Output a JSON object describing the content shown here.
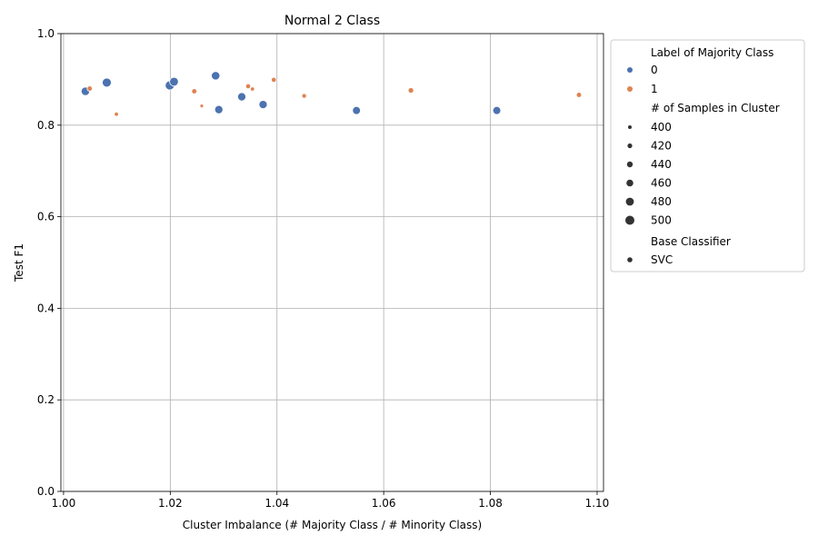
{
  "chart_data": {
    "type": "scatter",
    "title": "Normal 2 Class",
    "xlabel": "Cluster Imbalance (# Majority Class / # Minority Class)",
    "ylabel": "Test F1",
    "xlim": [
      0.9995,
      1.1012
    ],
    "ylim": [
      0.0,
      1.0
    ],
    "xticks": [
      1.0,
      1.02,
      1.04,
      1.06,
      1.08,
      1.1
    ],
    "xtick_labels": [
      "1.00",
      "1.02",
      "1.04",
      "1.06",
      "1.08",
      "1.10"
    ],
    "yticks": [
      0.0,
      0.2,
      0.4,
      0.6,
      0.8,
      1.0
    ],
    "ytick_labels": [
      "0.0",
      "0.2",
      "0.4",
      "0.6",
      "0.8",
      "1.0"
    ],
    "grid": true,
    "legend_position": "outside-right",
    "hue": {
      "title": "Label of Majority Class",
      "levels": [
        {
          "label": "0",
          "color": "#4c72b0"
        },
        {
          "label": "1",
          "color": "#dd8452"
        }
      ]
    },
    "size": {
      "title": "# of Samples in Cluster",
      "levels": [
        400,
        420,
        440,
        460,
        480,
        500
      ],
      "labels": [
        "400",
        "420",
        "440",
        "460",
        "480",
        "500"
      ]
    },
    "style": {
      "title": "Base Classifier",
      "levels": [
        "SVC"
      ]
    },
    "points": [
      {
        "x": 1.0041,
        "y": 0.874,
        "label": "0",
        "size": 490,
        "classifier": "SVC"
      },
      {
        "x": 1.0081,
        "y": 0.893,
        "label": "0",
        "size": 500,
        "classifier": "SVC"
      },
      {
        "x": 1.0199,
        "y": 0.887,
        "label": "0",
        "size": 500,
        "classifier": "SVC"
      },
      {
        "x": 1.0207,
        "y": 0.895,
        "label": "0",
        "size": 495,
        "classifier": "SVC"
      },
      {
        "x": 1.0285,
        "y": 0.908,
        "label": "0",
        "size": 490,
        "classifier": "SVC"
      },
      {
        "x": 1.0291,
        "y": 0.834,
        "label": "0",
        "size": 485,
        "classifier": "SVC"
      },
      {
        "x": 1.0334,
        "y": 0.862,
        "label": "0",
        "size": 485,
        "classifier": "SVC"
      },
      {
        "x": 1.0374,
        "y": 0.845,
        "label": "0",
        "size": 485,
        "classifier": "SVC"
      },
      {
        "x": 1.0549,
        "y": 0.832,
        "label": "0",
        "size": 480,
        "classifier": "SVC"
      },
      {
        "x": 1.0812,
        "y": 0.832,
        "label": "0",
        "size": 480,
        "classifier": "SVC"
      },
      {
        "x": 1.0049,
        "y": 0.88,
        "label": "1",
        "size": 430,
        "classifier": "SVC"
      },
      {
        "x": 1.0099,
        "y": 0.824,
        "label": "1",
        "size": 410,
        "classifier": "SVC"
      },
      {
        "x": 1.0245,
        "y": 0.874,
        "label": "1",
        "size": 430,
        "classifier": "SVC"
      },
      {
        "x": 1.0259,
        "y": 0.842,
        "label": "1",
        "size": 400,
        "classifier": "SVC"
      },
      {
        "x": 1.0346,
        "y": 0.885,
        "label": "1",
        "size": 425,
        "classifier": "SVC"
      },
      {
        "x": 1.0354,
        "y": 0.879,
        "label": "1",
        "size": 410,
        "classifier": "SVC"
      },
      {
        "x": 1.0394,
        "y": 0.899,
        "label": "1",
        "size": 425,
        "classifier": "SVC"
      },
      {
        "x": 1.0451,
        "y": 0.864,
        "label": "1",
        "size": 420,
        "classifier": "SVC"
      },
      {
        "x": 1.0651,
        "y": 0.876,
        "label": "1",
        "size": 435,
        "classifier": "SVC"
      },
      {
        "x": 1.0966,
        "y": 0.866,
        "label": "1",
        "size": 430,
        "classifier": "SVC"
      }
    ]
  }
}
